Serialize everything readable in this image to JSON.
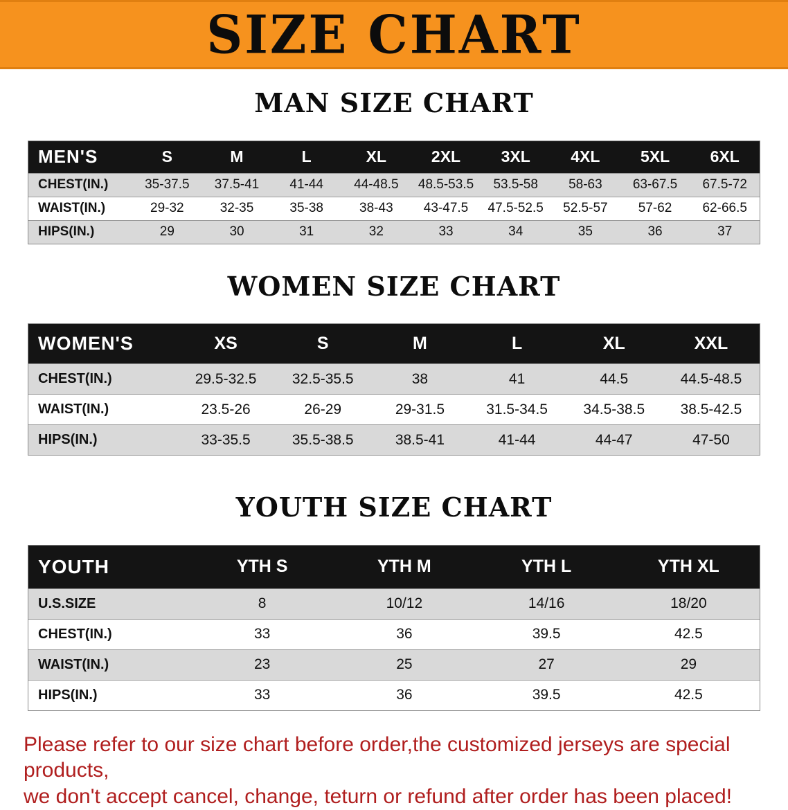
{
  "banner": {
    "title": "SIZE CHART"
  },
  "colors": {
    "banner_bg": "#f6921e",
    "table_header_bg": "#141414",
    "row_shade": "#d9d9d9",
    "footer_text": "#b01e1e"
  },
  "sections": [
    {
      "id": "mens",
      "heading": "MAN SIZE CHART",
      "table": {
        "header_label": "MEN'S",
        "columns": [
          "S",
          "M",
          "L",
          "XL",
          "2XL",
          "3XL",
          "4XL",
          "5XL",
          "6XL"
        ],
        "rows": [
          {
            "label": "CHEST(IN.)",
            "values": [
              "35-37.5",
              "37.5-41",
              "41-44",
              "44-48.5",
              "48.5-53.5",
              "53.5-58",
              "58-63",
              "63-67.5",
              "67.5-72"
            ]
          },
          {
            "label": "WAIST(IN.)",
            "values": [
              "29-32",
              "32-35",
              "35-38",
              "38-43",
              "43-47.5",
              "47.5-52.5",
              "52.5-57",
              "57-62",
              "62-66.5"
            ]
          },
          {
            "label": "HIPS(IN.)",
            "values": [
              "29",
              "30",
              "31",
              "32",
              "33",
              "34",
              "35",
              "36",
              "37"
            ]
          }
        ]
      }
    },
    {
      "id": "womens",
      "heading": "WOMEN SIZE CHART",
      "table": {
        "header_label": "WOMEN'S",
        "columns": [
          "XS",
          "S",
          "M",
          "L",
          "XL",
          "XXL"
        ],
        "rows": [
          {
            "label": "CHEST(IN.)",
            "values": [
              "29.5-32.5",
              "32.5-35.5",
              "38",
              "41",
              "44.5",
              "44.5-48.5"
            ]
          },
          {
            "label": "WAIST(IN.)",
            "values": [
              "23.5-26",
              "26-29",
              "29-31.5",
              "31.5-34.5",
              "34.5-38.5",
              "38.5-42.5"
            ]
          },
          {
            "label": "HIPS(IN.)",
            "values": [
              "33-35.5",
              "35.5-38.5",
              "38.5-41",
              "41-44",
              "44-47",
              "47-50"
            ]
          }
        ]
      }
    },
    {
      "id": "youth",
      "heading": "YOUTH SIZE CHART",
      "table": {
        "header_label": "YOUTH",
        "columns": [
          "YTH S",
          "YTH M",
          "YTH L",
          "YTH XL"
        ],
        "rows": [
          {
            "label": "U.S.SIZE",
            "values": [
              "8",
              "10/12",
              "14/16",
              "18/20"
            ]
          },
          {
            "label": "CHEST(IN.)",
            "values": [
              "33",
              "36",
              "39.5",
              "42.5"
            ]
          },
          {
            "label": "WAIST(IN.)",
            "values": [
              "23",
              "25",
              "27",
              "29"
            ]
          },
          {
            "label": "HIPS(IN.)",
            "values": [
              "33",
              "36",
              "39.5",
              "42.5"
            ]
          }
        ]
      }
    }
  ],
  "footer": {
    "lines": [
      "Please refer to our size chart before order,the customized jerseys are special products,",
      "we don't accept cancel, change, teturn or refund after order has been placed!"
    ]
  }
}
